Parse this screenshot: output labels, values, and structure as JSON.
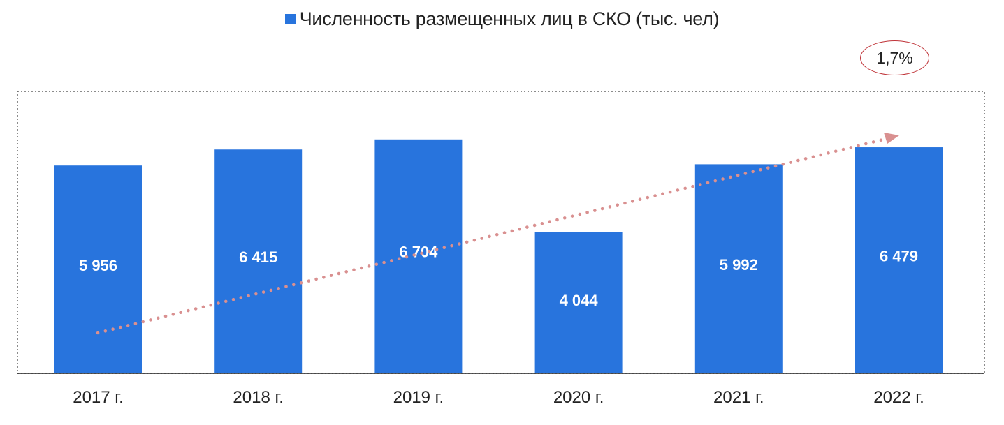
{
  "chart_data": {
    "type": "bar",
    "categories": [
      "2017 г.",
      "2018 г.",
      "2019 г.",
      "2020 г.",
      "2021 г.",
      "2022 г."
    ],
    "series": [
      {
        "name": "Численность размещенных лиц в СКО (тыс. чел)",
        "values": [
          5956,
          6415,
          6704,
          4044,
          5992,
          6479
        ]
      }
    ],
    "data_labels": [
      "5 956",
      "6 415",
      "6 704",
      "4 044",
      "5 992",
      "6 479"
    ],
    "legend_position": "top",
    "trend_line": true,
    "annotations": [
      "1,7%"
    ],
    "ylim": [
      0,
      8000
    ],
    "grid": false
  },
  "colors": {
    "bar": "#2874dd",
    "trend": "#d99090",
    "callout_border": "#c0353a",
    "plot_border": "#666666",
    "axis": "#222222"
  }
}
